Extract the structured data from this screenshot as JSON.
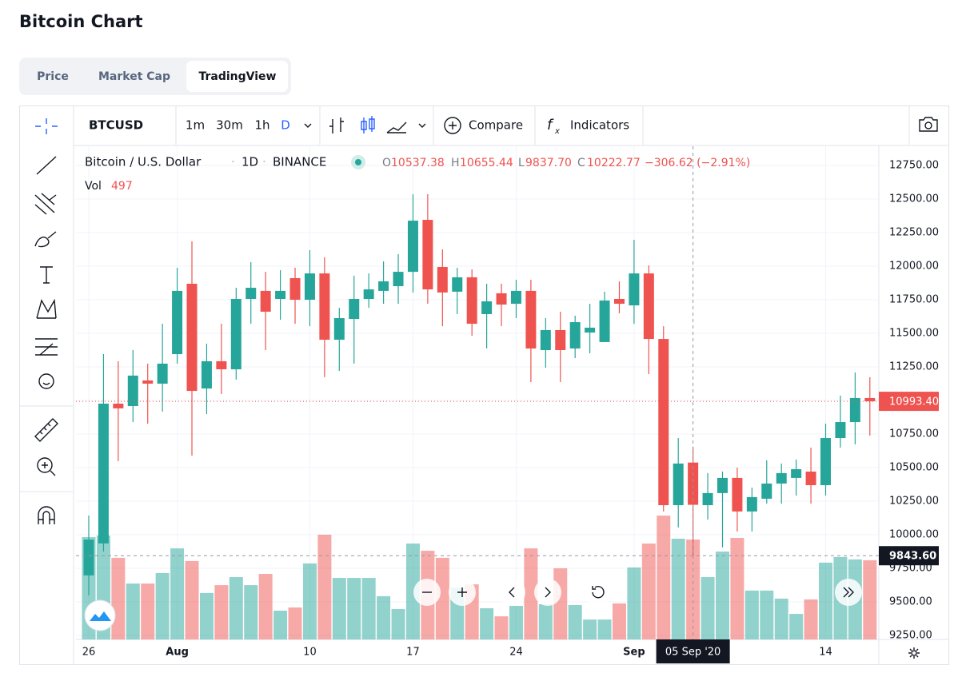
{
  "page": {
    "title": "Bitcoin Chart",
    "tabs": [
      "Price",
      "Market Cap",
      "TradingView"
    ]
  },
  "toolbar": {
    "symbol": "BTCUSD",
    "intervals": [
      "1m",
      "30m",
      "1h",
      "D"
    ],
    "compare": "Compare",
    "indicators": "Indicators"
  },
  "legend": {
    "name": "Bitcoin / U.S. Dollar",
    "interval": "1D",
    "exchange": "BINANCE",
    "o": "O",
    "open": "10537.38",
    "h": "H",
    "high": "10655.44",
    "l": "L",
    "low": "9837.70",
    "c": "C",
    "close": "10222.77",
    "change": "−306.62 (−2.91%)",
    "vol": "Vol"
  },
  "chart_data": {
    "type": "candlestick",
    "categories": [
      "26",
      null,
      null,
      null,
      null,
      null,
      "Aug",
      null,
      null,
      null,
      null,
      null,
      null,
      null,
      null,
      "10",
      null,
      null,
      null,
      null,
      null,
      null,
      "17",
      null,
      null,
      null,
      null,
      null,
      null,
      "24",
      null,
      null,
      null,
      null,
      null,
      null,
      null,
      "Sep",
      null,
      null,
      null,
      null,
      null,
      null,
      null,
      null,
      null,
      null,
      null,
      null,
      "14",
      null,
      null,
      null
    ],
    "open": [
      9697,
      9935,
      10976,
      10958,
      11149,
      11125,
      11345,
      11869,
      11089,
      11292,
      11232,
      11756,
      11816,
      11756,
      11911,
      11750,
      11946,
      11452,
      11607,
      11756,
      11816,
      11851,
      11958,
      12345,
      11994,
      11810,
      11917,
      11643,
      11798,
      11720,
      11816,
      11375,
      11524,
      11387,
      11506,
      11435,
      11756,
      11708,
      11946,
      11458,
      10220,
      10537.38,
      10220,
      10310,
      10423,
      10173,
      10268,
      10381,
      10423,
      10470,
      10369,
      10720,
      10839,
      11018
    ],
    "high": [
      10143,
      11345,
      11292,
      11375,
      11274,
      11571,
      11988,
      12185,
      11423,
      11571,
      11839,
      12030,
      11958,
      11970,
      11988,
      12119,
      12066,
      11690,
      11929,
      11946,
      12036,
      12089,
      12536,
      12536,
      12125,
      11988,
      11976,
      11869,
      11869,
      11899,
      11899,
      11613,
      11661,
      11631,
      11720,
      11810,
      11887,
      12196,
      12006,
      11553,
      10720,
      10655.44,
      10459,
      10470,
      10500,
      10351,
      10554,
      10530,
      10560,
      10649,
      10827,
      11036,
      11208,
      11173
    ],
    "low": [
      9548,
      9875,
      10548,
      10839,
      10827,
      10917,
      11274,
      10589,
      10899,
      11048,
      11155,
      11571,
      11375,
      11601,
      11571,
      11553,
      11173,
      11220,
      11274,
      11690,
      11720,
      11720,
      11804,
      11720,
      11553,
      11643,
      11482,
      11387,
      11553,
      11613,
      11137,
      11244,
      11137,
      11315,
      11351,
      11435,
      11649,
      11571,
      11196,
      10173,
      10054,
      9837.7,
      10113,
      9905,
      10024,
      10024,
      10232,
      10232,
      10292,
      10232,
      10292,
      10649,
      10673,
      10738
    ],
    "close": [
      9964,
      10976,
      10941,
      11185,
      11125,
      11274,
      11816,
      11071,
      11292,
      11232,
      11756,
      11839,
      11661,
      11816,
      11750,
      11946,
      11452,
      11613,
      11756,
      11827,
      11887,
      11958,
      12339,
      11827,
      11804,
      11917,
      11571,
      11738,
      11714,
      11816,
      11387,
      11524,
      11375,
      11583,
      11542,
      11744,
      11720,
      11946,
      11458,
      10220,
      10530,
      10222.77,
      10310,
      10423,
      10173,
      10280,
      10381,
      10459,
      10488,
      10369,
      10720,
      10839,
      11018,
      10993.4
    ],
    "volume": [
      509,
      517,
      406,
      278,
      278,
      330,
      453,
      390,
      231,
      270,
      310,
      270,
      326,
      143,
      159,
      378,
      521,
      306,
      306,
      306,
      215,
      151,
      477,
      441,
      406,
      258,
      274,
      155,
      115,
      167,
      453,
      175,
      354,
      171,
      99,
      99,
      179,
      358,
      477,
      616,
      501,
      497,
      310,
      437,
      505,
      243,
      243,
      203,
      127,
      199,
      382,
      410,
      398,
      394
    ],
    "up_color": "#26a69a",
    "down_color": "#ef5350",
    "ylim": [
      9220,
      12893
    ],
    "yticks": [
      {
        "value": 9250,
        "label": "9250.00"
      },
      {
        "value": 9500,
        "label": "9500.00"
      },
      {
        "value": 9750,
        "label": "9750.00"
      },
      {
        "value": 10000,
        "label": "10000.00"
      },
      {
        "value": 10250,
        "label": "10250.00"
      },
      {
        "value": 10500,
        "label": "10500.00"
      },
      {
        "value": 10750,
        "label": "10750.00"
      },
      {
        "value": 11000,
        "label": "11000.00"
      },
      {
        "value": 11250,
        "label": "11250.00"
      },
      {
        "value": 11500,
        "label": "11500.00"
      },
      {
        "value": 11750,
        "label": "11750.00"
      },
      {
        "value": 12000,
        "label": "12000.00"
      },
      {
        "value": 12250,
        "label": "12250.00"
      },
      {
        "value": 12500,
        "label": "12500.00"
      },
      {
        "value": 12750,
        "label": "12750.00"
      }
    ],
    "grid": true,
    "last_price": {
      "value": 10993.4,
      "label": "10993.40"
    },
    "crosshair_price": {
      "value": 9843.6,
      "label": "9843.60"
    },
    "crosshair_date": "05 Sep '20"
  }
}
